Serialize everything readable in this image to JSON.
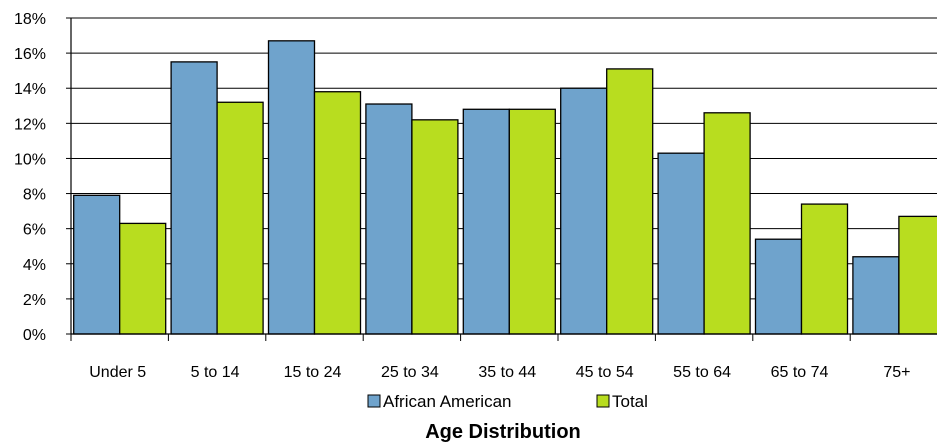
{
  "chart_data": {
    "type": "bar",
    "title": "Age Distribution",
    "categories": [
      "Under 5",
      "5 to 14",
      "15 to 24",
      "25 to 34",
      "35 to 44",
      "45 to 54",
      "55 to 64",
      "65 to 74",
      "75+"
    ],
    "series": [
      {
        "name": "African American",
        "color": "#6fa3cc",
        "values": [
          7.9,
          15.5,
          16.7,
          13.1,
          12.8,
          14.0,
          10.3,
          5.4,
          4.4
        ]
      },
      {
        "name": "Total",
        "color": "#b8dd1f",
        "values": [
          6.3,
          13.2,
          13.8,
          12.2,
          12.8,
          15.1,
          12.6,
          7.4,
          6.7
        ]
      }
    ],
    "y_ticks": [
      "0%",
      "2%",
      "4%",
      "6%",
      "8%",
      "10%",
      "12%",
      "14%",
      "16%",
      "18%"
    ],
    "ylim": [
      0,
      18
    ],
    "xlabel": "",
    "ylabel": "",
    "grid": true,
    "legend_position": "bottom"
  }
}
